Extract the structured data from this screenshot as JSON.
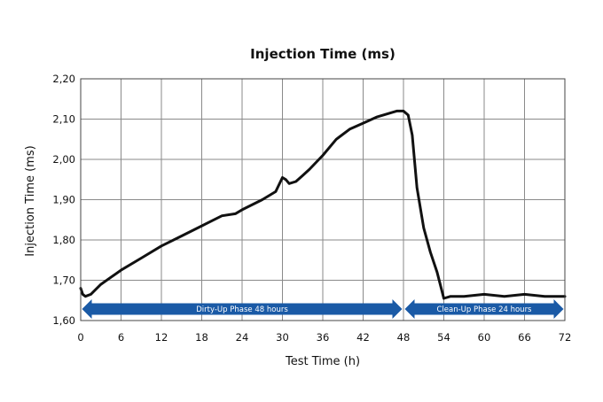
{
  "chart_data": {
    "type": "line",
    "title": "Injection Time (ms)",
    "xlabel": "Test Time (h)",
    "ylabel": "Injection Time (ms)",
    "xlim": [
      0,
      72
    ],
    "ylim": [
      1.6,
      2.2
    ],
    "x_ticks": [
      0,
      6,
      12,
      18,
      24,
      30,
      36,
      42,
      48,
      54,
      60,
      66,
      72
    ],
    "x_tick_labels": [
      "0",
      "6",
      "12",
      "18",
      "24",
      "30",
      "36",
      "42",
      "48",
      "54",
      "60",
      "66",
      "72"
    ],
    "y_ticks": [
      1.6,
      1.7,
      1.8,
      1.9,
      2.0,
      2.1,
      2.2
    ],
    "y_tick_labels": [
      "1,60",
      "1,70",
      "1,80",
      "1,90",
      "2,00",
      "2,10",
      "2,20"
    ],
    "grid": true,
    "line_color": "#111111",
    "series": [
      {
        "x": [
          0,
          0.3,
          0.7,
          1.5,
          3,
          6,
          9,
          12,
          15,
          18,
          21,
          23,
          24,
          27,
          29,
          30,
          30.5,
          31,
          32,
          33,
          34,
          36,
          38,
          40,
          42,
          44,
          46,
          47,
          48,
          48.7,
          49.3,
          50,
          51,
          52,
          53,
          54,
          55,
          57,
          60,
          63,
          66,
          69,
          72
        ],
        "y": [
          1.68,
          1.665,
          1.66,
          1.665,
          1.69,
          1.725,
          1.755,
          1.785,
          1.81,
          1.835,
          1.86,
          1.865,
          1.875,
          1.9,
          1.92,
          1.955,
          1.95,
          1.94,
          1.945,
          1.96,
          1.975,
          2.01,
          2.05,
          2.075,
          2.09,
          2.105,
          2.115,
          2.12,
          2.12,
          2.11,
          2.06,
          1.93,
          1.83,
          1.77,
          1.72,
          1.655,
          1.66,
          1.66,
          1.665,
          1.66,
          1.665,
          1.66,
          1.66
        ]
      }
    ],
    "phases": [
      {
        "label": "Dirty-Up Phase 48 hours",
        "from": 0,
        "to": 48
      },
      {
        "label": "Clean-Up Phase 24 hours",
        "from": 48,
        "to": 72
      }
    ],
    "phase_color": "#1a5aa6"
  }
}
